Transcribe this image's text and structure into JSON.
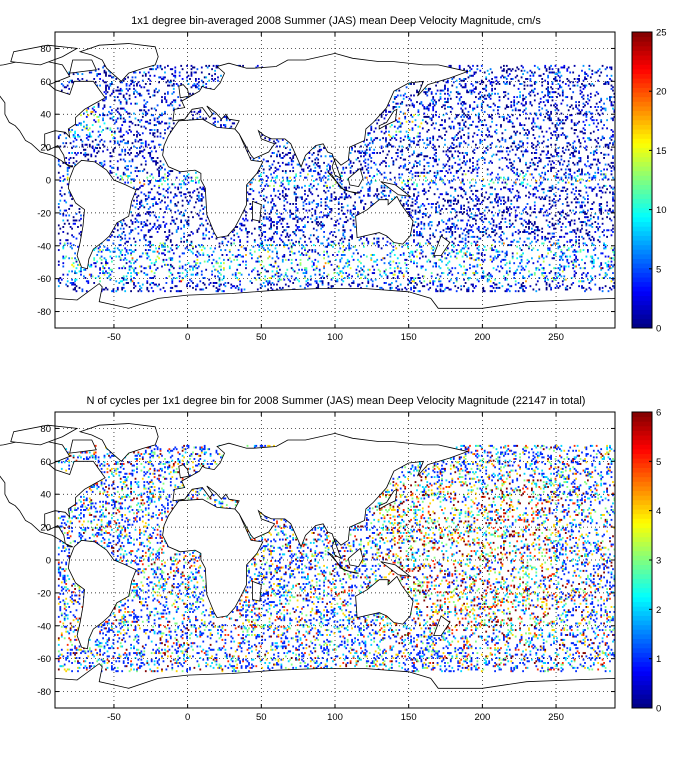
{
  "chart_data": [
    {
      "type": "heatmap",
      "title": "1x1 degree bin-averaged 2008 Summer (JAS) mean Deep Velocity Magnitude, cm/s",
      "xlim": [
        -90,
        290
      ],
      "ylim": [
        -90,
        90
      ],
      "x_ticks": [
        -50,
        0,
        50,
        100,
        150,
        200,
        250
      ],
      "y_ticks": [
        80,
        60,
        40,
        20,
        0,
        -20,
        -40,
        -60,
        -80
      ],
      "grid": true,
      "grid_style": "dotted",
      "colorbar": {
        "min": 0,
        "max": 25,
        "ticks": [
          0,
          5,
          10,
          15,
          20,
          25
        ],
        "colormap": "jet",
        "placement": "right"
      },
      "background": "world coastline map with 1x1 degree colored bins over ocean",
      "value_pattern": "mostly 0-8 cm/s; higher 10-25 cm/s in the Southern Ocean, western boundary currents and equatorial band"
    },
    {
      "type": "heatmap",
      "title": "N of cycles per 1x1 degree bin for 2008 Summer (JAS) mean Deep Velocity Magnitude (22147 in total)",
      "xlim": [
        -90,
        290
      ],
      "ylim": [
        -90,
        90
      ],
      "x_ticks": [
        -50,
        0,
        50,
        100,
        150,
        200,
        250
      ],
      "y_ticks": [
        80,
        60,
        40,
        20,
        0,
        -20,
        -40,
        -60,
        -80
      ],
      "grid": true,
      "grid_style": "dotted",
      "colorbar": {
        "min": 0,
        "max": 6,
        "ticks": [
          0,
          1,
          2,
          3,
          4,
          5,
          6
        ],
        "colormap": "jet",
        "placement": "right"
      },
      "background": "world coastline map with 1x1 degree colored bins over ocean",
      "value_pattern": "mostly 1-2 cycles per bin; up to 6 in the North and tropical Pacific"
    }
  ],
  "colors": {
    "jet_low": "#00008f",
    "jet_mid": "#80ff80",
    "jet_high": "#800000",
    "land": "#ffffff",
    "coast": "#000000"
  }
}
